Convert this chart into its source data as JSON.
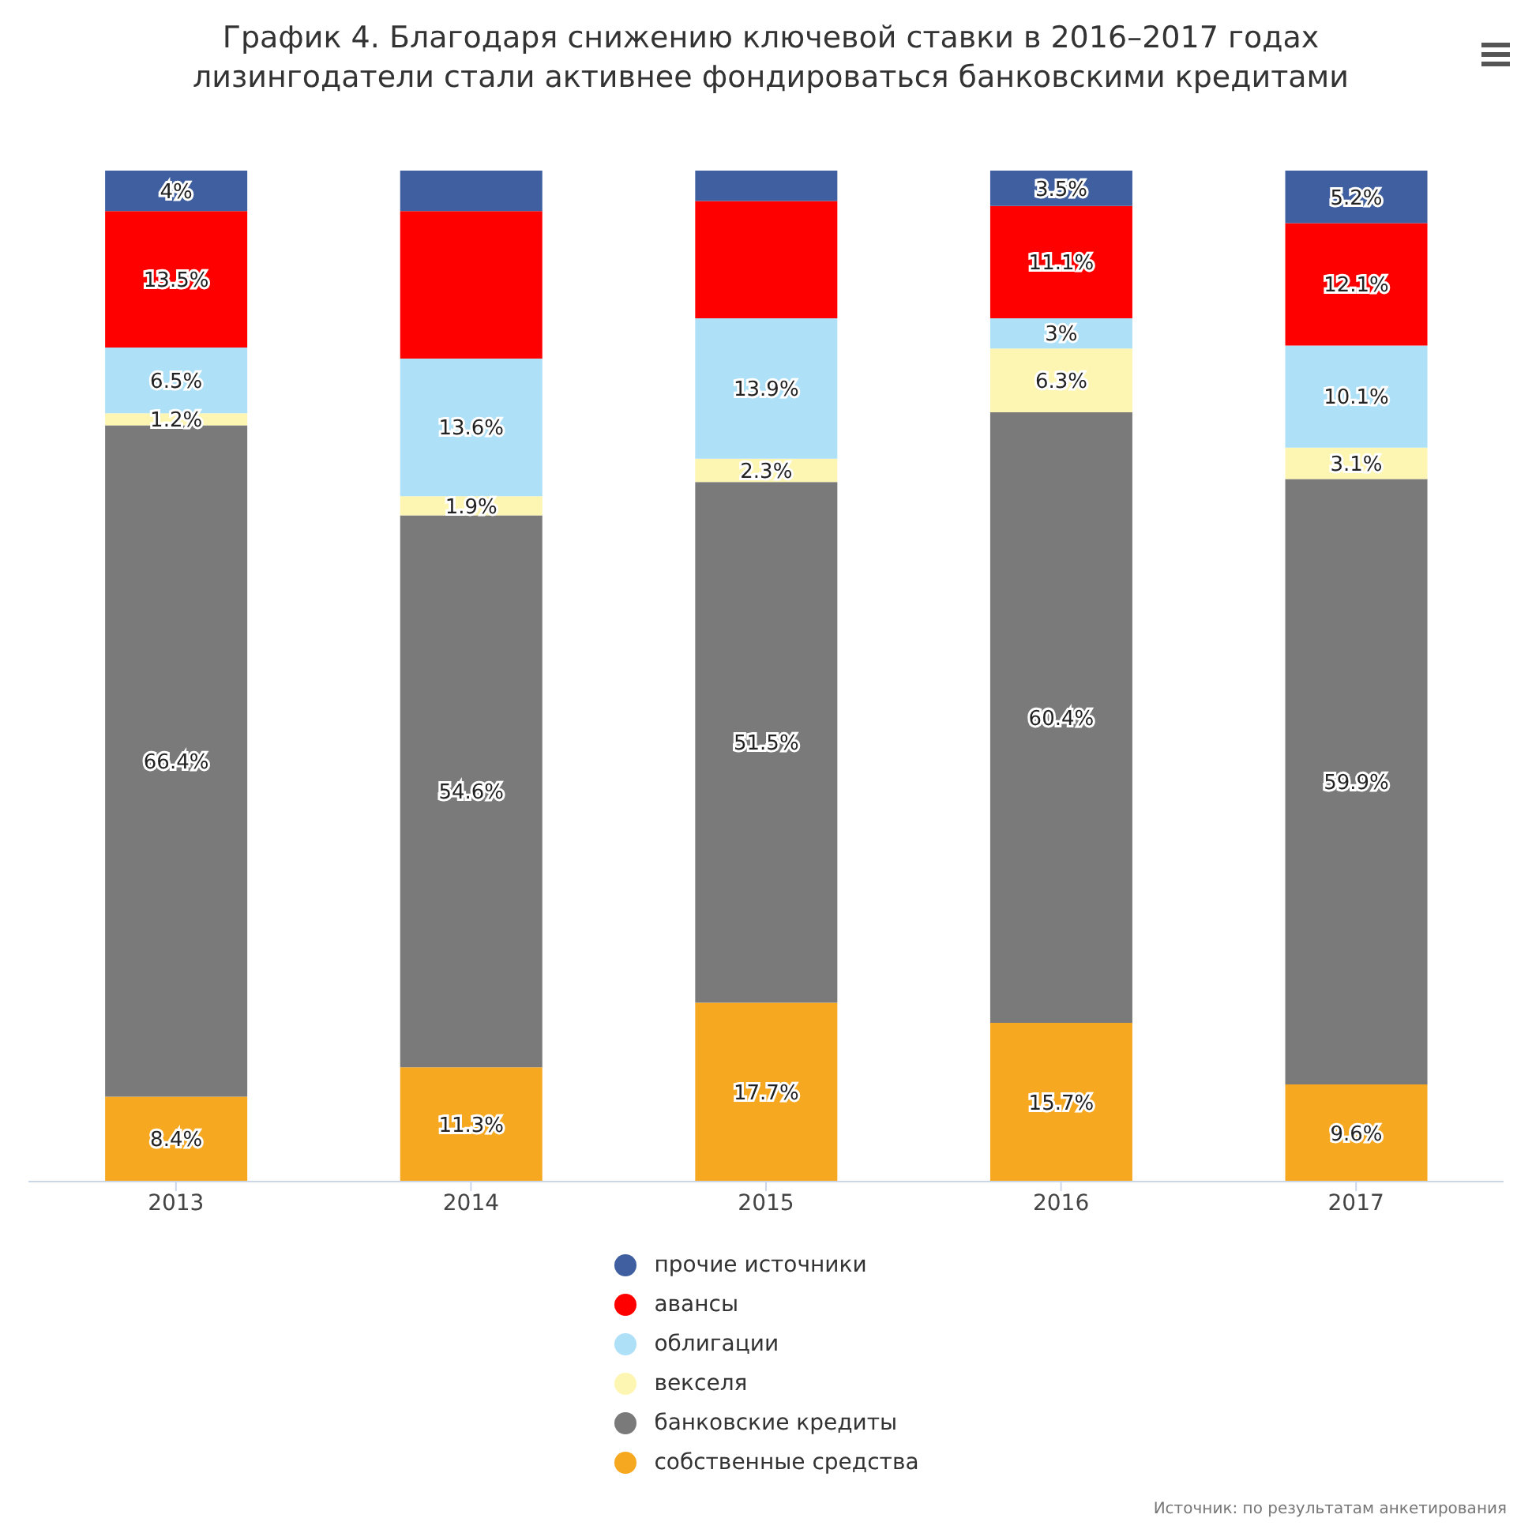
{
  "chart_data": {
    "type": "bar",
    "stacked": true,
    "title": "График 4. Благодаря снижению ключевой ставки в 2016–2017 годах лизингодатели стали активнее фондироваться банковскими кредитами",
    "categories": [
      "2013",
      "2014",
      "2015",
      "2016",
      "2017"
    ],
    "series": [
      {
        "name": "собственные средства",
        "color": "#f7a821",
        "values": [
          8.4,
          11.3,
          17.7,
          15.7,
          9.6
        ],
        "value_labels": [
          "8.4%",
          "11.3%",
          "17.7%",
          "15.7%",
          "9.6%"
        ]
      },
      {
        "name": "банковские кредиты",
        "color": "#7a7a7a",
        "values": [
          66.4,
          54.6,
          51.5,
          60.4,
          59.9
        ],
        "value_labels": [
          "66.4%",
          "54.6%",
          "51.5%",
          "60.4%",
          "59.9%"
        ]
      },
      {
        "name": "векселя",
        "color": "#fdf6b2",
        "values": [
          1.2,
          1.9,
          2.3,
          6.3,
          3.1
        ],
        "value_labels": [
          "1.2%",
          "1.9%",
          "2.3%",
          "6.3%",
          "3.1%"
        ]
      },
      {
        "name": "облигации",
        "color": "#aee0f7",
        "values": [
          6.5,
          13.6,
          13.9,
          3,
          10.1
        ],
        "value_labels": [
          "6.5%",
          "13.6%",
          "13.9%",
          "3%",
          "10.1%"
        ]
      },
      {
        "name": "авансы",
        "color": "#ff0000",
        "values": [
          13.5,
          14.6,
          11.6,
          11.1,
          12.1
        ],
        "value_labels": [
          "13.5%",
          null,
          null,
          "11.1%",
          "12.1%"
        ]
      },
      {
        "name": "прочие источники",
        "color": "#3f5fa0",
        "values": [
          4,
          4,
          3,
          3.5,
          5.2
        ],
        "value_labels": [
          "4%",
          null,
          null,
          "3.5%",
          "5.2%"
        ]
      }
    ],
    "legend": "bottom",
    "annotations": [
      "Источник: по результатам анкетирования"
    ]
  }
}
